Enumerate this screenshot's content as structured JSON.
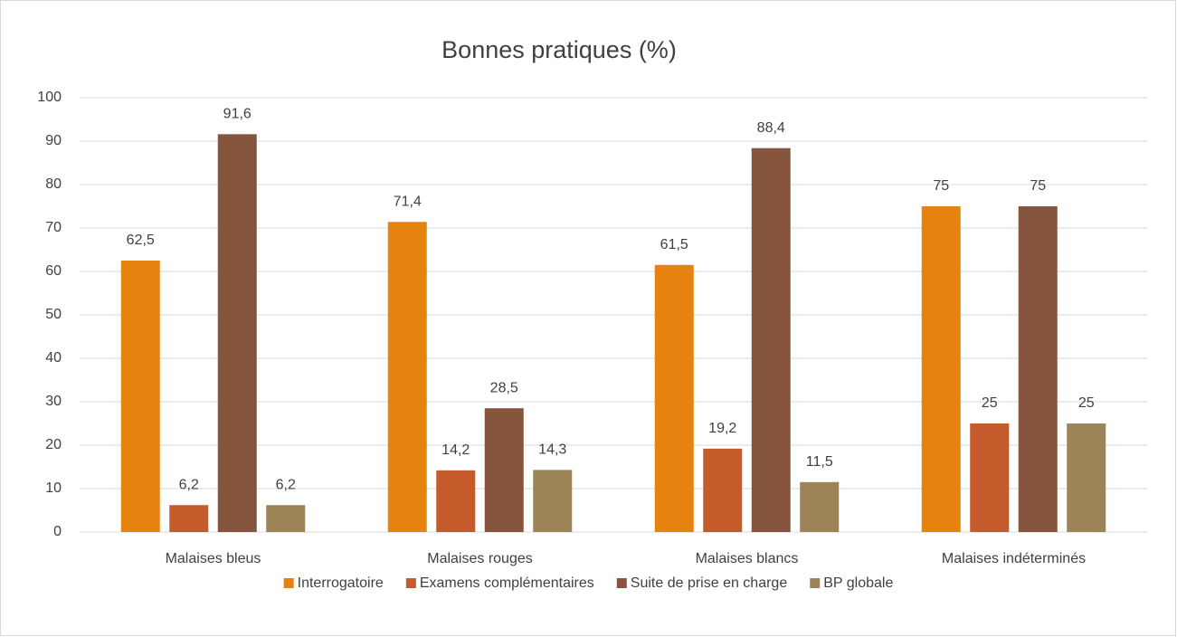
{
  "chart_data": {
    "type": "bar",
    "title": "Bonnes pratiques (%)",
    "categories": [
      "Malaises bleus",
      "Malaises rouges",
      "Malaises blancs",
      "Malaises indéterminés"
    ],
    "series": [
      {
        "name": "Interrogatoire",
        "color": "#e6820e",
        "values": [
          62.5,
          71.4,
          61.5,
          75
        ],
        "value_labels": [
          "62,5",
          "71,4",
          "61,5",
          "75"
        ]
      },
      {
        "name": "Examens complémentaires",
        "color": "#c55a2b",
        "values": [
          6.2,
          14.2,
          19.2,
          25
        ],
        "value_labels": [
          "6,2",
          "14,2",
          "19,2",
          "25"
        ]
      },
      {
        "name": "Suite de prise en charge",
        "color": "#86553e",
        "values": [
          91.6,
          28.5,
          88.4,
          75
        ],
        "value_labels": [
          "91,6",
          "28,5",
          "88,4",
          "75"
        ]
      },
      {
        "name": "BP globale",
        "color": "#9c8458",
        "values": [
          6.2,
          14.3,
          11.5,
          25
        ],
        "value_labels": [
          "6,2",
          "14,3",
          "11,5",
          "25"
        ]
      }
    ],
    "ylim": [
      0,
      100
    ],
    "yticks": [
      0,
      10,
      20,
      30,
      40,
      50,
      60,
      70,
      80,
      90,
      100
    ],
    "grid": true,
    "legend": "bottom"
  }
}
